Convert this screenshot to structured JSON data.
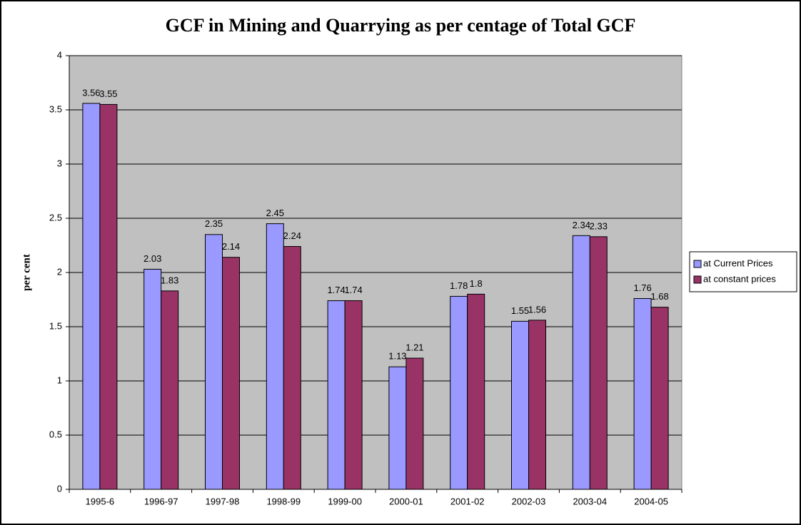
{
  "chart_data": {
    "type": "bar",
    "title": "GCF in Mining and Quarrying as per centage of Total GCF",
    "y_label": "per cent",
    "categories": [
      "1995-6",
      "1996-97",
      "1997-98",
      "1998-99",
      "1999-00",
      "2000-01",
      "2001-02",
      "2002-03",
      "2003-04",
      "2004-05"
    ],
    "series": [
      {
        "name": "at Current Prices",
        "color": "#9999ff",
        "values": [
          3.56,
          2.03,
          2.35,
          2.45,
          1.74,
          1.13,
          1.78,
          1.55,
          2.34,
          1.76
        ]
      },
      {
        "name": "at constant prices",
        "color": "#993366",
        "values": [
          3.55,
          1.83,
          2.14,
          2.24,
          1.74,
          1.21,
          1.8,
          1.56,
          2.33,
          1.68
        ]
      }
    ],
    "ylim": [
      0,
      4
    ],
    "yticks": [
      0,
      0.5,
      1,
      1.5,
      2,
      2.5,
      3,
      3.5,
      4
    ],
    "grid": true,
    "legend": "right"
  }
}
